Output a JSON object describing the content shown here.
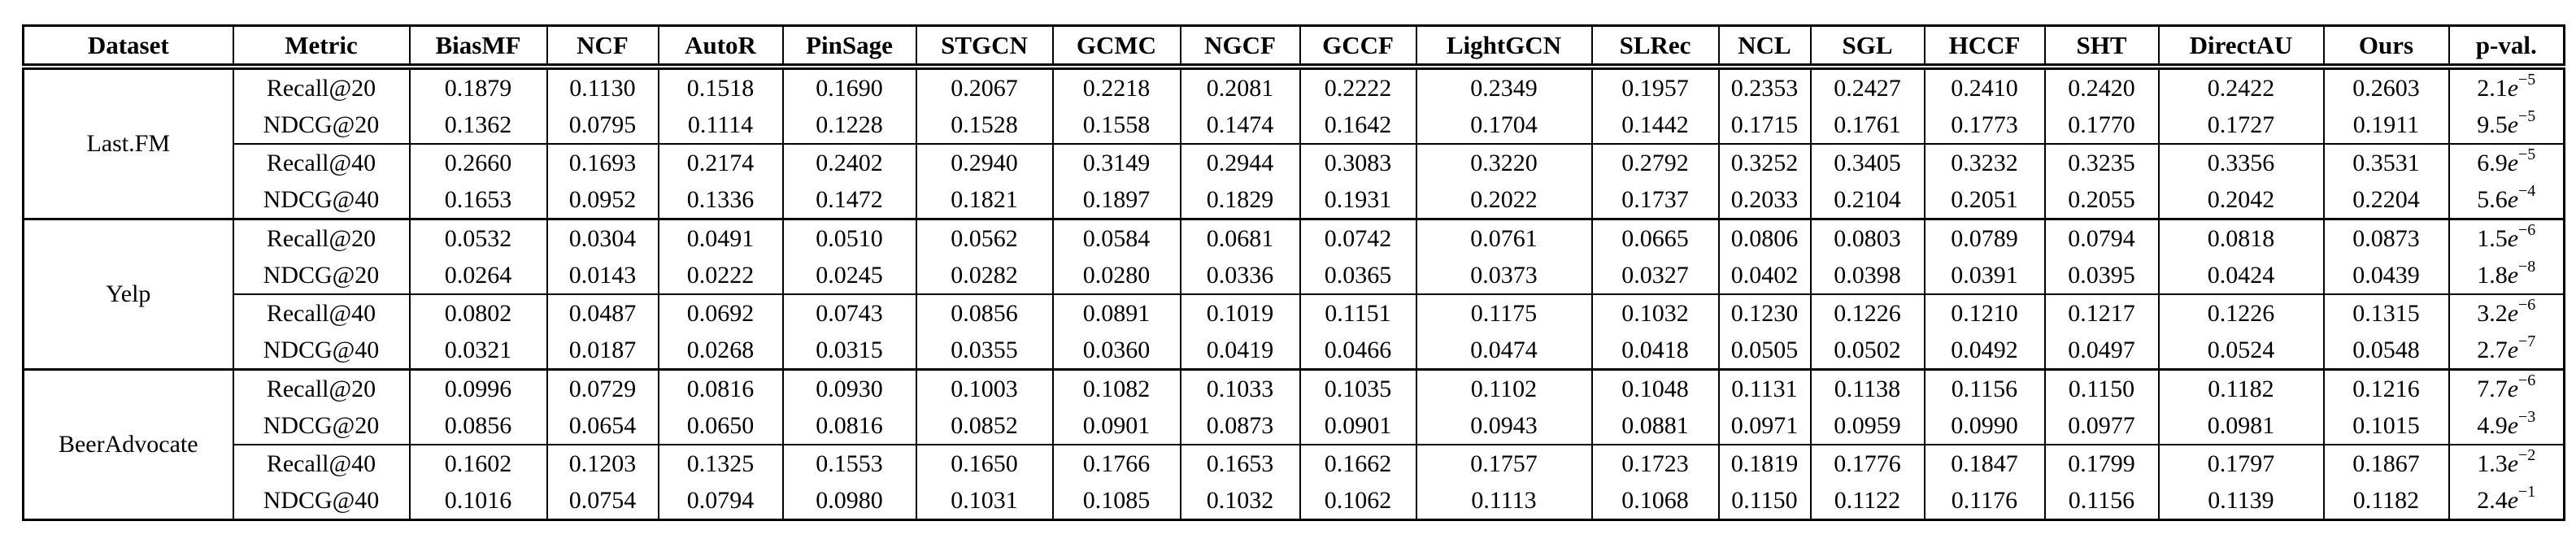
{
  "page": {
    "background_color": "#ffffff",
    "text_color": "#000000",
    "border_color": "#000000"
  },
  "table": {
    "columns": [
      "Dataset",
      "Metric",
      "BiasMF",
      "NCF",
      "AutoR",
      "PinSage",
      "STGCN",
      "GCMC",
      "NGCF",
      "GCCF",
      "LightGCN",
      "SLRec",
      "NCL",
      "SGL",
      "HCCF",
      "SHT",
      "DirectAU",
      "Ours",
      "p-val."
    ],
    "baseline_columns": [
      "BiasMF",
      "NCF",
      "AutoR",
      "PinSage",
      "STGCN",
      "GCMC",
      "NGCF",
      "GCCF",
      "LightGCN",
      "SLRec",
      "NCL",
      "SGL",
      "HCCF",
      "SHT",
      "DirectAU"
    ],
    "bold_column": "Ours",
    "groups": [
      {
        "dataset": "Last.FM",
        "rows": [
          {
            "metric": "Recall@20",
            "values": [
              "0.1879",
              "0.1130",
              "0.1518",
              "0.1690",
              "0.2067",
              "0.2218",
              "0.2081",
              "0.2222",
              "0.2349",
              "0.1957",
              "0.2353",
              "0.2427",
              "0.2410",
              "0.2420",
              "0.2422"
            ],
            "ours": "0.2603",
            "pval": "2.1e-5"
          },
          {
            "metric": "NDCG@20",
            "values": [
              "0.1362",
              "0.0795",
              "0.1114",
              "0.1228",
              "0.1528",
              "0.1558",
              "0.1474",
              "0.1642",
              "0.1704",
              "0.1442",
              "0.1715",
              "0.1761",
              "0.1773",
              "0.1770",
              "0.1727"
            ],
            "ours": "0.1911",
            "pval": "9.5e-5"
          },
          {
            "metric": "Recall@40",
            "values": [
              "0.2660",
              "0.1693",
              "0.2174",
              "0.2402",
              "0.2940",
              "0.3149",
              "0.2944",
              "0.3083",
              "0.3220",
              "0.2792",
              "0.3252",
              "0.3405",
              "0.3232",
              "0.3235",
              "0.3356"
            ],
            "ours": "0.3531",
            "pval": "6.9e-5"
          },
          {
            "metric": "NDCG@40",
            "values": [
              "0.1653",
              "0.0952",
              "0.1336",
              "0.1472",
              "0.1821",
              "0.1897",
              "0.1829",
              "0.1931",
              "0.2022",
              "0.1737",
              "0.2033",
              "0.2104",
              "0.2051",
              "0.2055",
              "0.2042"
            ],
            "ours": "0.2204",
            "pval": "5.6e-4"
          }
        ]
      },
      {
        "dataset": "Yelp",
        "rows": [
          {
            "metric": "Recall@20",
            "values": [
              "0.0532",
              "0.0304",
              "0.0491",
              "0.0510",
              "0.0562",
              "0.0584",
              "0.0681",
              "0.0742",
              "0.0761",
              "0.0665",
              "0.0806",
              "0.0803",
              "0.0789",
              "0.0794",
              "0.0818"
            ],
            "ours": "0.0873",
            "pval": "1.5e-6"
          },
          {
            "metric": "NDCG@20",
            "values": [
              "0.0264",
              "0.0143",
              "0.0222",
              "0.0245",
              "0.0282",
              "0.0280",
              "0.0336",
              "0.0365",
              "0.0373",
              "0.0327",
              "0.0402",
              "0.0398",
              "0.0391",
              "0.0395",
              "0.0424"
            ],
            "ours": "0.0439",
            "pval": "1.8e-8"
          },
          {
            "metric": "Recall@40",
            "values": [
              "0.0802",
              "0.0487",
              "0.0692",
              "0.0743",
              "0.0856",
              "0.0891",
              "0.1019",
              "0.1151",
              "0.1175",
              "0.1032",
              "0.1230",
              "0.1226",
              "0.1210",
              "0.1217",
              "0.1226"
            ],
            "ours": "0.1315",
            "pval": "3.2e-6"
          },
          {
            "metric": "NDCG@40",
            "values": [
              "0.0321",
              "0.0187",
              "0.0268",
              "0.0315",
              "0.0355",
              "0.0360",
              "0.0419",
              "0.0466",
              "0.0474",
              "0.0418",
              "0.0505",
              "0.0502",
              "0.0492",
              "0.0497",
              "0.0524"
            ],
            "ours": "0.0548",
            "pval": "2.7e-7"
          }
        ]
      },
      {
        "dataset": "BeerAdvocate",
        "rows": [
          {
            "metric": "Recall@20",
            "values": [
              "0.0996",
              "0.0729",
              "0.0816",
              "0.0930",
              "0.1003",
              "0.1082",
              "0.1033",
              "0.1035",
              "0.1102",
              "0.1048",
              "0.1131",
              "0.1138",
              "0.1156",
              "0.1150",
              "0.1182"
            ],
            "ours": "0.1216",
            "pval": "7.7e-6"
          },
          {
            "metric": "NDCG@20",
            "values": [
              "0.0856",
              "0.0654",
              "0.0650",
              "0.0816",
              "0.0852",
              "0.0901",
              "0.0873",
              "0.0901",
              "0.0943",
              "0.0881",
              "0.0971",
              "0.0959",
              "0.0990",
              "0.0977",
              "0.0981"
            ],
            "ours": "0.1015",
            "pval": "4.9e-3"
          },
          {
            "metric": "Recall@40",
            "values": [
              "0.1602",
              "0.1203",
              "0.1325",
              "0.1553",
              "0.1650",
              "0.1766",
              "0.1653",
              "0.1662",
              "0.1757",
              "0.1723",
              "0.1819",
              "0.1776",
              "0.1847",
              "0.1799",
              "0.1797"
            ],
            "ours": "0.1867",
            "pval": "1.3e-2"
          },
          {
            "metric": "NDCG@40",
            "values": [
              "0.1016",
              "0.0754",
              "0.0794",
              "0.0980",
              "0.1031",
              "0.1085",
              "0.1032",
              "0.1062",
              "0.1113",
              "0.1068",
              "0.1150",
              "0.1122",
              "0.1176",
              "0.1156",
              "0.1139"
            ],
            "ours": "0.1182",
            "pval": "2.4e-1"
          }
        ]
      }
    ]
  }
}
